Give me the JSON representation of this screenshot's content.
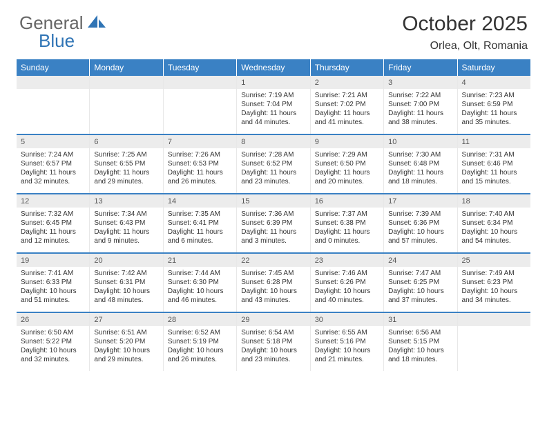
{
  "brand": {
    "part1": "General",
    "part2": "Blue"
  },
  "title": "October 2025",
  "location": "Orlea, Olt, Romania",
  "colors": {
    "header_bg": "#3a81c4",
    "daynum_bg": "#ececec",
    "row_border": "#3a81c4",
    "brand_gray": "#666666",
    "brand_blue": "#2f74b5"
  },
  "weekday_labels": [
    "Sunday",
    "Monday",
    "Tuesday",
    "Wednesday",
    "Thursday",
    "Friday",
    "Saturday"
  ],
  "weeks": [
    [
      null,
      null,
      null,
      {
        "d": "1",
        "sr": "7:19 AM",
        "ss": "7:04 PM",
        "dl": "11 hours and 44 minutes."
      },
      {
        "d": "2",
        "sr": "7:21 AM",
        "ss": "7:02 PM",
        "dl": "11 hours and 41 minutes."
      },
      {
        "d": "3",
        "sr": "7:22 AM",
        "ss": "7:00 PM",
        "dl": "11 hours and 38 minutes."
      },
      {
        "d": "4",
        "sr": "7:23 AM",
        "ss": "6:59 PM",
        "dl": "11 hours and 35 minutes."
      }
    ],
    [
      {
        "d": "5",
        "sr": "7:24 AM",
        "ss": "6:57 PM",
        "dl": "11 hours and 32 minutes."
      },
      {
        "d": "6",
        "sr": "7:25 AM",
        "ss": "6:55 PM",
        "dl": "11 hours and 29 minutes."
      },
      {
        "d": "7",
        "sr": "7:26 AM",
        "ss": "6:53 PM",
        "dl": "11 hours and 26 minutes."
      },
      {
        "d": "8",
        "sr": "7:28 AM",
        "ss": "6:52 PM",
        "dl": "11 hours and 23 minutes."
      },
      {
        "d": "9",
        "sr": "7:29 AM",
        "ss": "6:50 PM",
        "dl": "11 hours and 20 minutes."
      },
      {
        "d": "10",
        "sr": "7:30 AM",
        "ss": "6:48 PM",
        "dl": "11 hours and 18 minutes."
      },
      {
        "d": "11",
        "sr": "7:31 AM",
        "ss": "6:46 PM",
        "dl": "11 hours and 15 minutes."
      }
    ],
    [
      {
        "d": "12",
        "sr": "7:32 AM",
        "ss": "6:45 PM",
        "dl": "11 hours and 12 minutes."
      },
      {
        "d": "13",
        "sr": "7:34 AM",
        "ss": "6:43 PM",
        "dl": "11 hours and 9 minutes."
      },
      {
        "d": "14",
        "sr": "7:35 AM",
        "ss": "6:41 PM",
        "dl": "11 hours and 6 minutes."
      },
      {
        "d": "15",
        "sr": "7:36 AM",
        "ss": "6:39 PM",
        "dl": "11 hours and 3 minutes."
      },
      {
        "d": "16",
        "sr": "7:37 AM",
        "ss": "6:38 PM",
        "dl": "11 hours and 0 minutes."
      },
      {
        "d": "17",
        "sr": "7:39 AM",
        "ss": "6:36 PM",
        "dl": "10 hours and 57 minutes."
      },
      {
        "d": "18",
        "sr": "7:40 AM",
        "ss": "6:34 PM",
        "dl": "10 hours and 54 minutes."
      }
    ],
    [
      {
        "d": "19",
        "sr": "7:41 AM",
        "ss": "6:33 PM",
        "dl": "10 hours and 51 minutes."
      },
      {
        "d": "20",
        "sr": "7:42 AM",
        "ss": "6:31 PM",
        "dl": "10 hours and 48 minutes."
      },
      {
        "d": "21",
        "sr": "7:44 AM",
        "ss": "6:30 PM",
        "dl": "10 hours and 46 minutes."
      },
      {
        "d": "22",
        "sr": "7:45 AM",
        "ss": "6:28 PM",
        "dl": "10 hours and 43 minutes."
      },
      {
        "d": "23",
        "sr": "7:46 AM",
        "ss": "6:26 PM",
        "dl": "10 hours and 40 minutes."
      },
      {
        "d": "24",
        "sr": "7:47 AM",
        "ss": "6:25 PM",
        "dl": "10 hours and 37 minutes."
      },
      {
        "d": "25",
        "sr": "7:49 AM",
        "ss": "6:23 PM",
        "dl": "10 hours and 34 minutes."
      }
    ],
    [
      {
        "d": "26",
        "sr": "6:50 AM",
        "ss": "5:22 PM",
        "dl": "10 hours and 32 minutes."
      },
      {
        "d": "27",
        "sr": "6:51 AM",
        "ss": "5:20 PM",
        "dl": "10 hours and 29 minutes."
      },
      {
        "d": "28",
        "sr": "6:52 AM",
        "ss": "5:19 PM",
        "dl": "10 hours and 26 minutes."
      },
      {
        "d": "29",
        "sr": "6:54 AM",
        "ss": "5:18 PM",
        "dl": "10 hours and 23 minutes."
      },
      {
        "d": "30",
        "sr": "6:55 AM",
        "ss": "5:16 PM",
        "dl": "10 hours and 21 minutes."
      },
      {
        "d": "31",
        "sr": "6:56 AM",
        "ss": "5:15 PM",
        "dl": "10 hours and 18 minutes."
      },
      null
    ]
  ],
  "labels": {
    "sunrise": "Sunrise: ",
    "sunset": "Sunset: ",
    "daylight": "Daylight: "
  }
}
